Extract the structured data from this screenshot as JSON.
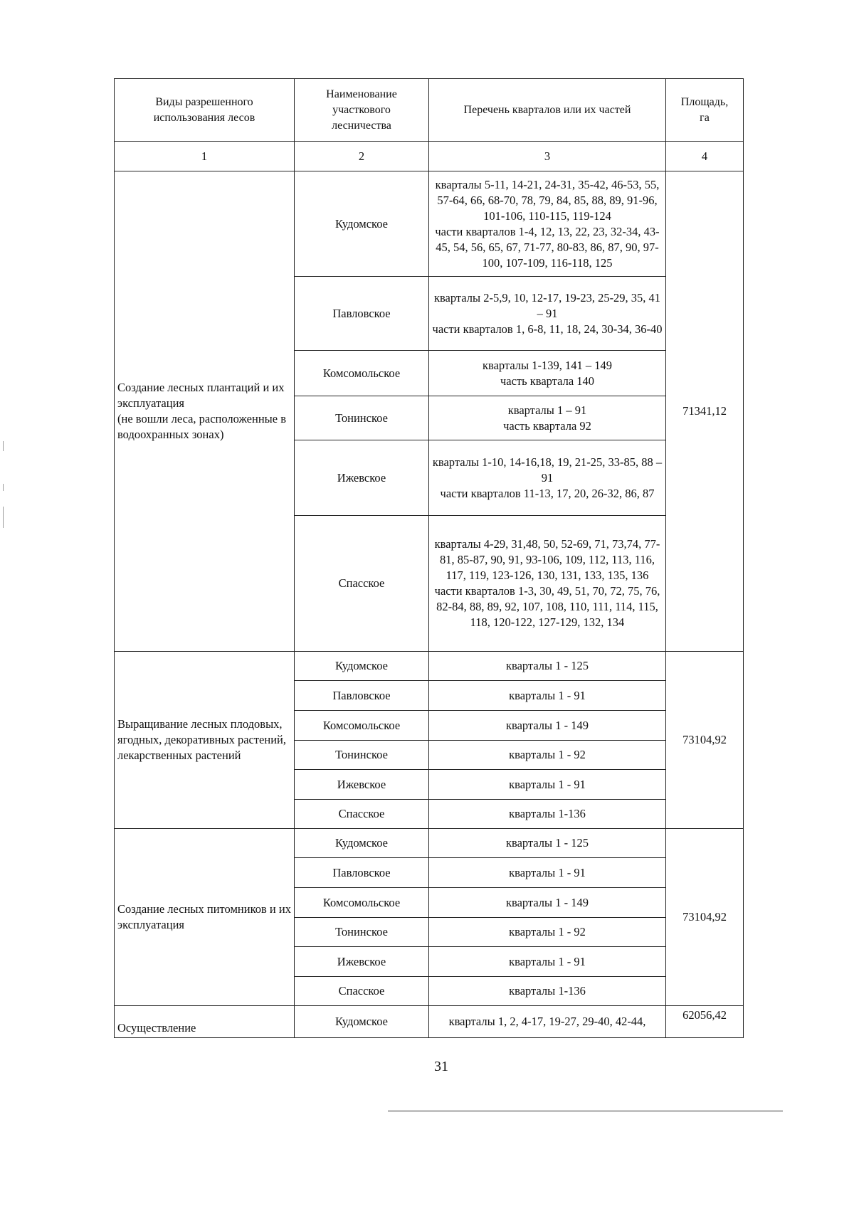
{
  "header": {
    "col1": "Виды разрешенного\nиспользования лесов",
    "col2": "Наименование\nучасткового\nлесничества",
    "col3": "Перечень кварталов или их частей",
    "col4": "Площадь,\nга",
    "num1": "1",
    "num2": "2",
    "num3": "3",
    "num4": "4"
  },
  "sections": [
    {
      "use": "Создание лесных плантаций и их эксплуатация\n(не вошли леса, расположенные в водоохранных зонах)",
      "area": "71341,12",
      "rows": [
        {
          "district": "Кудомское",
          "quarters": "кварталы 5-11, 14-21, 24-31, 35-42, 46-53, 55, 57-64, 66, 68-70, 78, 79, 84, 85, 88, 89, 91-96, 101-106, 110-115, 119-124\nчасти кварталов 1-4, 12, 13, 22, 23, 32-34, 43-45, 54, 56, 65, 67, 71-77, 80-83, 86, 87, 90, 97-100, 107-109, 116-118, 125"
        },
        {
          "district": "Павловское",
          "quarters": "кварталы 2-5,9, 10, 12-17, 19-23, 25-29, 35, 41 – 91\nчасти кварталов 1, 6-8, 11, 18, 24, 30-34, 36-40"
        },
        {
          "district": "Комсомольское",
          "quarters": "кварталы 1-139, 141 – 149\nчасть квартала 140"
        },
        {
          "district": "Тонинское",
          "quarters": "кварталы 1 – 91\nчасть квартала 92"
        },
        {
          "district": "Ижевское",
          "quarters": "кварталы 1-10, 14-16,18, 19, 21-25, 33-85, 88 – 91\nчасти кварталов 11-13, 17, 20, 26-32, 86, 87"
        },
        {
          "district": "Спасское",
          "quarters": "кварталы 4-29, 31,48, 50, 52-69, 71, 73,74, 77-81, 85-87, 90, 91, 93-106, 109, 112, 113, 116, 117, 119, 123-126, 130, 131, 133, 135, 136\nчасти кварталов 1-3, 30, 49, 51, 70, 72, 75, 76, 82-84, 88, 89, 92, 107, 108, 110, 111, 114, 115, 118, 120-122, 127-129, 132, 134"
        }
      ]
    },
    {
      "use": "Выращивание лесных плодовых, ягодных, декоративных растений, лекарственных растений",
      "area": "73104,92",
      "rows": [
        {
          "district": "Кудомское",
          "quarters": "кварталы 1 - 125"
        },
        {
          "district": "Павловское",
          "quarters": "кварталы 1 - 91"
        },
        {
          "district": "Комсомольское",
          "quarters": "кварталы 1 - 149"
        },
        {
          "district": "Тонинское",
          "quarters": "кварталы 1 - 92"
        },
        {
          "district": "Ижевское",
          "quarters": "кварталы 1 - 91"
        },
        {
          "district": "Спасское",
          "quarters": "кварталы 1-136"
        }
      ]
    },
    {
      "use": "Создание лесных питомников и их эксплуатация",
      "area": "73104,92",
      "rows": [
        {
          "district": "Кудомское",
          "quarters": "кварталы 1 - 125"
        },
        {
          "district": "Павловское",
          "quarters": "кварталы 1 - 91"
        },
        {
          "district": "Комсомольское",
          "quarters": "кварталы 1 - 149"
        },
        {
          "district": "Тонинское",
          "quarters": "кварталы 1 - 92"
        },
        {
          "district": "Ижевское",
          "quarters": "кварталы 1 - 91"
        },
        {
          "district": "Спасское",
          "quarters": "кварталы 1-136"
        }
      ]
    },
    {
      "use": "Осуществление",
      "area": "62056,42",
      "rows": [
        {
          "district": "Кудомское",
          "quarters": "кварталы 1, 2, 4-17, 19-27, 29-40, 42-44,"
        }
      ]
    }
  ],
  "page_number": "31"
}
